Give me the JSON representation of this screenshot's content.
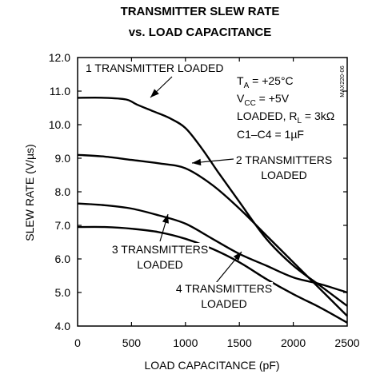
{
  "chart_data": {
    "type": "line",
    "title": [
      "TRANSMITTER SLEW RATE",
      "vs. LOAD CAPACITANCE"
    ],
    "xlabel": "LOAD CAPACITANCE (pF)",
    "ylabel": "SLEW RATE (V/µs)",
    "xlim": [
      0,
      2500
    ],
    "ylim": [
      4.0,
      12.0
    ],
    "xticks": [
      "0",
      "500",
      "1000",
      "1500",
      "2000",
      "2500"
    ],
    "yticks": [
      "4.0",
      "5.0",
      "6.0",
      "7.0",
      "8.0",
      "9.0",
      "10.0",
      "11.0",
      "12.0"
    ],
    "grid": false,
    "part_number": "MAX220-06",
    "conditions": {
      "ta": {
        "sym": "T",
        "sub": "A",
        "rest": " = +25°C"
      },
      "vcc": {
        "sym": "V",
        "sub": "CC",
        "rest": " = +5V"
      },
      "load": {
        "pre": "LOADED, R",
        "sub": "L",
        "rest": " = 3kΩ"
      },
      "caps": "C1–C4 = 1µF"
    },
    "series": [
      {
        "label": "1 TRANSMITTER LOADED",
        "points": [
          [
            0,
            10.8
          ],
          [
            250,
            10.8
          ],
          [
            450,
            10.75
          ],
          [
            550,
            10.6
          ],
          [
            700,
            10.4
          ],
          [
            850,
            10.2
          ],
          [
            1000,
            9.9
          ],
          [
            1150,
            9.3
          ],
          [
            1300,
            8.6
          ],
          [
            1500,
            7.7
          ],
          [
            1750,
            6.6
          ],
          [
            2000,
            5.8
          ],
          [
            2250,
            5.2
          ],
          [
            2500,
            4.6
          ]
        ]
      },
      {
        "label": [
          "2 TRANSMITTERS",
          "LOADED"
        ],
        "points": [
          [
            0,
            9.1
          ],
          [
            250,
            9.05
          ],
          [
            500,
            8.95
          ],
          [
            750,
            8.85
          ],
          [
            1000,
            8.7
          ],
          [
            1250,
            8.2
          ],
          [
            1500,
            7.5
          ],
          [
            1750,
            6.7
          ],
          [
            2000,
            5.9
          ],
          [
            2250,
            5.1
          ],
          [
            2500,
            4.3
          ]
        ]
      },
      {
        "label": [
          "3 TRANSMITTERS",
          "LOADED"
        ],
        "points": [
          [
            0,
            7.65
          ],
          [
            250,
            7.6
          ],
          [
            500,
            7.5
          ],
          [
            750,
            7.3
          ],
          [
            1000,
            7.05
          ],
          [
            1250,
            6.6
          ],
          [
            1500,
            6.15
          ],
          [
            1750,
            5.8
          ],
          [
            2000,
            5.45
          ],
          [
            2250,
            5.25
          ],
          [
            2500,
            5.0
          ]
        ]
      },
      {
        "label": [
          "4 TRANSMITTERS",
          "LOADED"
        ],
        "points": [
          [
            0,
            6.95
          ],
          [
            250,
            6.95
          ],
          [
            500,
            6.9
          ],
          [
            750,
            6.8
          ],
          [
            1000,
            6.6
          ],
          [
            1250,
            6.3
          ],
          [
            1500,
            5.9
          ],
          [
            1750,
            5.4
          ],
          [
            2000,
            4.95
          ],
          [
            2250,
            4.55
          ],
          [
            2500,
            4.1
          ]
        ]
      }
    ]
  }
}
